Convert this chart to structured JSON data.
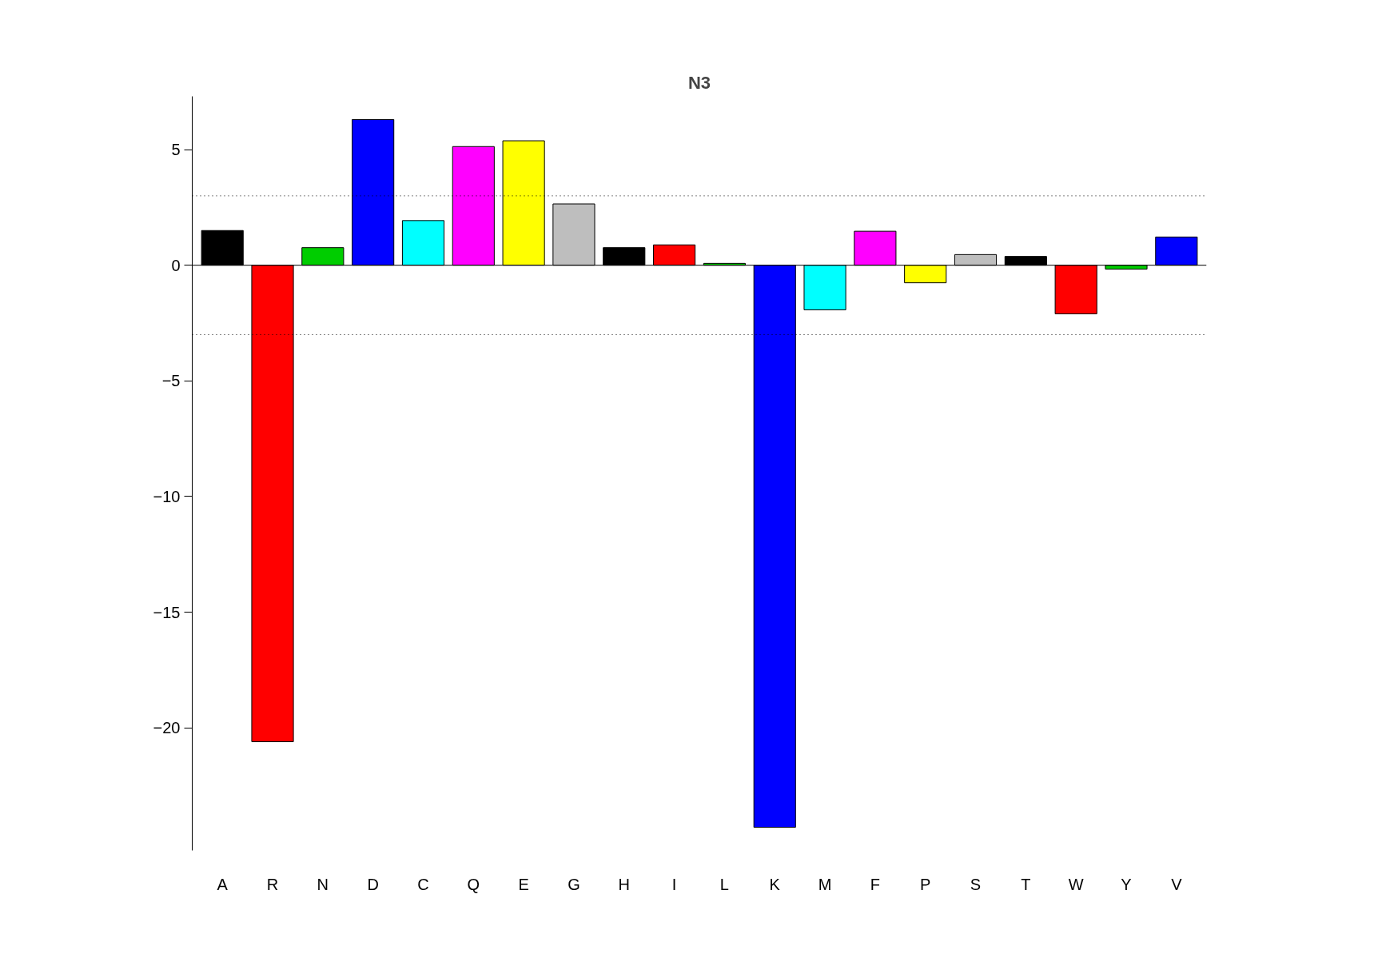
{
  "chart_data": {
    "type": "bar",
    "title": "N3",
    "categories": [
      "A",
      "R",
      "N",
      "D",
      "C",
      "Q",
      "E",
      "G",
      "H",
      "I",
      "L",
      "K",
      "M",
      "F",
      "P",
      "S",
      "T",
      "W",
      "Y",
      "V"
    ],
    "values": [
      1.5,
      -20.6,
      0.76,
      6.3,
      1.93,
      5.13,
      5.38,
      2.65,
      0.76,
      0.88,
      0.08,
      -24.3,
      -1.93,
      1.47,
      -0.76,
      0.46,
      0.38,
      -2.1,
      -0.17,
      1.22
    ],
    "colors": [
      "#000000",
      "#ff0000",
      "#00cd00",
      "#0000ff",
      "#00ffff",
      "#ff00ff",
      "#ffff00",
      "#bebebe",
      "#000000",
      "#ff0000",
      "#00cd00",
      "#0000ff",
      "#00ffff",
      "#ff00ff",
      "#ffff00",
      "#bebebe",
      "#000000",
      "#ff0000",
      "#00cd00",
      "#0000ff"
    ],
    "ylim": [
      -25.3,
      7.3
    ],
    "yticks": [
      -20,
      -15,
      -10,
      -5,
      0,
      5
    ],
    "ref_lines": [
      {
        "axis": "y",
        "value": 3,
        "line_style": "dotted"
      },
      {
        "axis": "y",
        "value": -3,
        "line_style": "dotted"
      },
      {
        "axis": "y",
        "value": 0,
        "line_style": "solid"
      }
    ],
    "grid": false
  }
}
